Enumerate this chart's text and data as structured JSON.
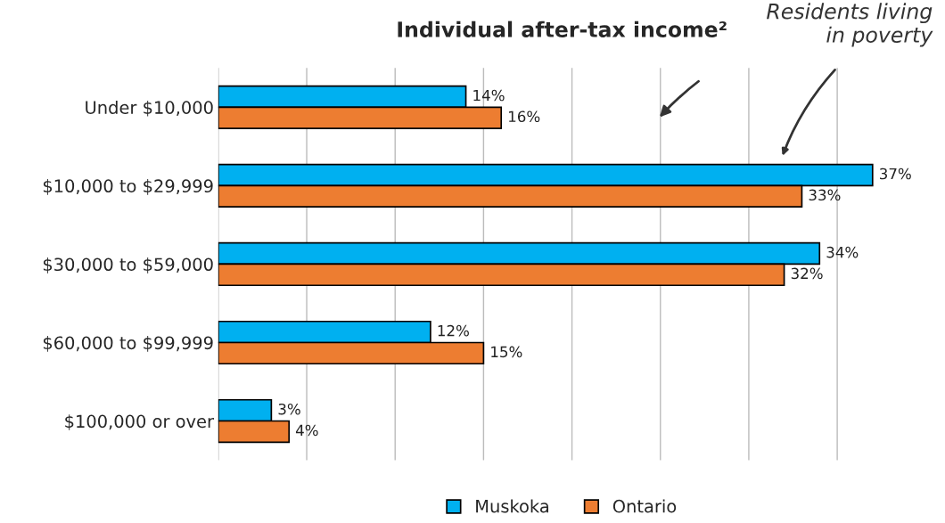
{
  "chart_data": {
    "type": "bar",
    "orientation": "horizontal",
    "title": "Individual after-tax income²",
    "categories": [
      "Under $10,000",
      "$10,000 to $29,999",
      "$30,000 to $59,000",
      "$60,000 to $99,999",
      "$100,000 or over"
    ],
    "series": [
      {
        "name": "Muskoka",
        "color": "#00b0f0",
        "values": [
          14,
          37,
          34,
          12,
          3
        ],
        "value_labels": [
          "14%",
          "37%",
          "34%",
          "12%",
          "3%"
        ]
      },
      {
        "name": "Ontario",
        "color": "#ed7d31",
        "values": [
          16,
          33,
          32,
          15,
          4
        ],
        "value_labels": [
          "16%",
          "33%",
          "32%",
          "15%",
          "4%"
        ]
      }
    ],
    "tick_labels": "y",
    "grid": "x",
    "legend": "bottom",
    "annotations": [
      "Residents living\nin poverty"
    ]
  }
}
